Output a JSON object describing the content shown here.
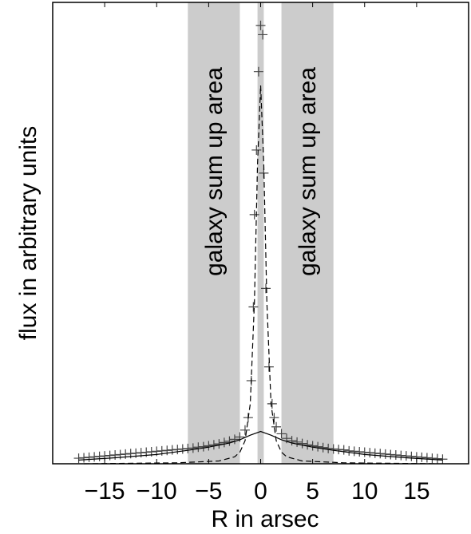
{
  "chart_data": {
    "type": "scatter",
    "title": "",
    "xlabel": "R in arsec",
    "ylabel": "flux in arbitrary units",
    "xlim": [
      -20,
      20
    ],
    "ylim": [
      0,
      1
    ],
    "xticks": [
      -15,
      -10,
      -5,
      0,
      5,
      10,
      15
    ],
    "xtick_labels": [
      "−15",
      "−10",
      "−5",
      "0",
      "5",
      "10",
      "15"
    ],
    "yticks": [],
    "grid": false,
    "shaded_regions": [
      {
        "x0": -7,
        "x1": -2,
        "label": "galaxy sum up area",
        "color": "#cccccc"
      },
      {
        "x0": -0.3,
        "x1": 0.3,
        "label": "",
        "color": "#cccccc"
      },
      {
        "x0": 2,
        "x1": 7,
        "label": "galaxy sum up area",
        "color": "#cccccc"
      }
    ],
    "series": [
      {
        "style": "markers-plus",
        "color": "#444444",
        "points": [
          [
            -17.5,
            0.012
          ],
          [
            -17,
            0.013
          ],
          [
            -16.5,
            0.014
          ],
          [
            -16,
            0.015
          ],
          [
            -15.5,
            0.016
          ],
          [
            -15,
            0.017
          ],
          [
            -14.5,
            0.018
          ],
          [
            -14,
            0.019
          ],
          [
            -13.5,
            0.02
          ],
          [
            -13,
            0.021
          ],
          [
            -12.5,
            0.022
          ],
          [
            -12,
            0.023
          ],
          [
            -11.5,
            0.024
          ],
          [
            -11,
            0.025
          ],
          [
            -10.5,
            0.026
          ],
          [
            -10,
            0.027
          ],
          [
            -9.5,
            0.028
          ],
          [
            -9,
            0.029
          ],
          [
            -8.5,
            0.03
          ],
          [
            -8,
            0.031
          ],
          [
            -7.5,
            0.032
          ],
          [
            -7,
            0.033
          ],
          [
            -6.5,
            0.034
          ],
          [
            -6,
            0.036
          ],
          [
            -5.5,
            0.037
          ],
          [
            -5,
            0.039
          ],
          [
            -4.5,
            0.041
          ],
          [
            -4,
            0.043
          ],
          [
            -3.5,
            0.046
          ],
          [
            -3,
            0.049
          ],
          [
            -2.5,
            0.053
          ],
          [
            -2,
            0.058
          ],
          [
            -1.5,
            0.073
          ],
          [
            -1.2,
            0.1
          ],
          [
            -0.9,
            0.18
          ],
          [
            -0.7,
            0.34
          ],
          [
            -0.6,
            0.54
          ],
          [
            -0.4,
            0.68
          ],
          [
            -0.2,
            0.85
          ],
          [
            0,
            0.95
          ],
          [
            0.2,
            0.93
          ],
          [
            0.3,
            0.63
          ],
          [
            0.5,
            0.38
          ],
          [
            0.8,
            0.21
          ],
          [
            1.1,
            0.13
          ],
          [
            1.3,
            0.1
          ],
          [
            1.5,
            0.08
          ],
          [
            2,
            0.065
          ],
          [
            2.5,
            0.055
          ],
          [
            3,
            0.05
          ],
          [
            3.5,
            0.047
          ],
          [
            4,
            0.044
          ],
          [
            4.5,
            0.041
          ],
          [
            5,
            0.039
          ],
          [
            5.5,
            0.037
          ],
          [
            6,
            0.035
          ],
          [
            6.5,
            0.033
          ],
          [
            7,
            0.032
          ],
          [
            7.5,
            0.031
          ],
          [
            8,
            0.03
          ],
          [
            8.5,
            0.028
          ],
          [
            9,
            0.027
          ],
          [
            9.5,
            0.026
          ],
          [
            10,
            0.025
          ],
          [
            10.5,
            0.024
          ],
          [
            11,
            0.023
          ],
          [
            11.5,
            0.022
          ],
          [
            12,
            0.021
          ],
          [
            12.5,
            0.02
          ],
          [
            13,
            0.019
          ],
          [
            13.5,
            0.018
          ],
          [
            14,
            0.017
          ],
          [
            14.5,
            0.016
          ],
          [
            15,
            0.015
          ],
          [
            15.5,
            0.014
          ],
          [
            16,
            0.013
          ],
          [
            16.5,
            0.012
          ],
          [
            17,
            0.011
          ],
          [
            17.5,
            0.01
          ]
        ]
      },
      {
        "style": "dashed-line",
        "color": "#000000",
        "points": [
          [
            -17,
            0
          ],
          [
            -8,
            0.002
          ],
          [
            -4,
            0.006
          ],
          [
            -2.5,
            0.015
          ],
          [
            -2,
            0.025
          ],
          [
            -1.5,
            0.05
          ],
          [
            -1,
            0.13
          ],
          [
            -0.6,
            0.35
          ],
          [
            -0.3,
            0.65
          ],
          [
            0,
            0.82
          ],
          [
            0.3,
            0.65
          ],
          [
            0.6,
            0.35
          ],
          [
            1,
            0.13
          ],
          [
            1.5,
            0.05
          ],
          [
            2,
            0.025
          ],
          [
            2.5,
            0.015
          ],
          [
            4,
            0.006
          ],
          [
            8,
            0.002
          ],
          [
            17,
            0
          ]
        ]
      },
      {
        "style": "solid-line",
        "color": "#000000",
        "points": [
          [
            -17.5,
            0.008
          ],
          [
            -14,
            0.013
          ],
          [
            -10,
            0.02
          ],
          [
            -7,
            0.029
          ],
          [
            -5,
            0.036
          ],
          [
            -3,
            0.045
          ],
          [
            -2,
            0.052
          ],
          [
            -1,
            0.062
          ],
          [
            0,
            0.07
          ],
          [
            1,
            0.062
          ],
          [
            2,
            0.052
          ],
          [
            3,
            0.045
          ],
          [
            5,
            0.036
          ],
          [
            7,
            0.029
          ],
          [
            10,
            0.02
          ],
          [
            14,
            0.013
          ],
          [
            17.5,
            0.008
          ]
        ]
      }
    ]
  }
}
